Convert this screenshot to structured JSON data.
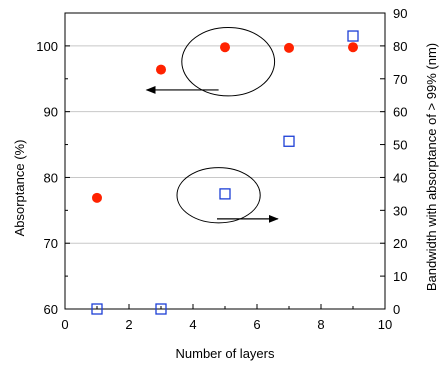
{
  "chart_data": {
    "type": "scatter",
    "xlabel": "Number of layers",
    "ylabel_left": "Absorptance (%)",
    "ylabel_right": "Bandwidth with absorptance of > 99% (nm)",
    "xlim": [
      0,
      10
    ],
    "ylim_left": [
      60,
      105
    ],
    "ylim_right": [
      0,
      90
    ],
    "x_ticks": [
      "0",
      "2",
      "4",
      "6",
      "8",
      "10"
    ],
    "y_left_ticks": [
      "60",
      "70",
      "80",
      "90",
      "100"
    ],
    "y_right_ticks": [
      "0",
      "10",
      "20",
      "30",
      "40",
      "50",
      "60",
      "70",
      "80",
      "90"
    ],
    "grid": "horizontal at left-axis ticks",
    "series": [
      {
        "axis": "left",
        "marker": "filled-circle",
        "color": "#ff2200",
        "x": [
          1,
          3,
          5,
          7,
          9
        ],
        "y": [
          76.9,
          96.4,
          99.8,
          99.7,
          99.8
        ]
      },
      {
        "axis": "right",
        "marker": "open-square",
        "color": "#1c3fd6",
        "x": [
          1,
          3,
          5,
          7,
          9
        ],
        "y": [
          0,
          0,
          35,
          51,
          83
        ]
      }
    ],
    "annotations": [
      {
        "shape": "ellipse",
        "cx": 5.1,
        "cy": 97.6,
        "rx": 1.45,
        "ry": 5.2,
        "axis": "left"
      },
      {
        "shape": "arrow",
        "from": [
          4.8,
          93.3
        ],
        "to": [
          2.55,
          93.3
        ],
        "axis": "left",
        "meaning": "points to left axis"
      },
      {
        "shape": "ellipse",
        "cx": 4.8,
        "cy": 77.3,
        "rx": 1.3,
        "ry": 4.2,
        "axis": "left"
      },
      {
        "shape": "arrow",
        "from": [
          4.75,
          73.7
        ],
        "to": [
          6.65,
          73.7
        ],
        "axis": "left",
        "meaning": "points to right axis"
      }
    ]
  }
}
